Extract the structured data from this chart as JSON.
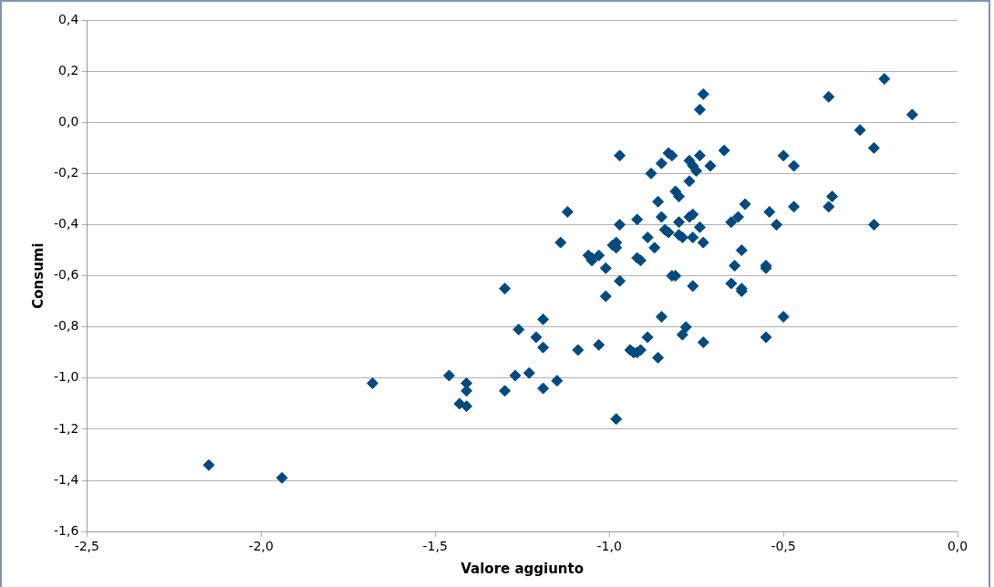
{
  "chart_data": {
    "type": "scatter",
    "xlabel": "Valore aggiunto",
    "ylabel": "Consumi",
    "xlim": [
      -2.5,
      0
    ],
    "xticks": [
      {
        "value": -2.5,
        "label": "-2,5"
      },
      {
        "value": -2,
        "label": "-2,0"
      },
      {
        "value": -1.5,
        "label": "-1,5"
      },
      {
        "value": -1,
        "label": "-1,0"
      },
      {
        "value": -0.5,
        "label": "-0,5"
      },
      {
        "value": 0,
        "label": "0,0"
      }
    ],
    "ylim": [
      -1.6,
      0.4
    ],
    "yticks": [
      {
        "value": -1.6,
        "label": "-1,6"
      },
      {
        "value": -1.4,
        "label": "-1,4"
      },
      {
        "value": -1.2,
        "label": "-1,2"
      },
      {
        "value": -1,
        "label": "-1,0"
      },
      {
        "value": -0.8,
        "label": "-0,8"
      },
      {
        "value": -0.6,
        "label": "-0,6"
      },
      {
        "value": -0.4,
        "label": "-0,4"
      },
      {
        "value": -0.2,
        "label": "-0,2"
      },
      {
        "value": 0,
        "label": "0,0"
      },
      {
        "value": 0.2,
        "label": "0,2"
      },
      {
        "value": 0.4,
        "label": "0,4"
      }
    ],
    "grid": "y",
    "marker": "diamond",
    "series": [
      {
        "color": "#004a80",
        "x": [
          -2.15,
          -1.94,
          -1.68,
          -1.46,
          -1.43,
          -1.41,
          -1.41,
          -1.41,
          -1.3,
          -1.3,
          -1.27,
          -1.26,
          -1.23,
          -1.21,
          -1.19,
          -1.19,
          -1.19,
          -1.15,
          -1.14,
          -1.12,
          -1.09,
          -1.06,
          -1.05,
          -1.05,
          -1.03,
          -1.03,
          -1.01,
          -1.01,
          -0.99,
          -0.98,
          -0.98,
          -0.98,
          -0.97,
          -0.97,
          -0.97,
          -0.94,
          -0.93,
          -0.92,
          -0.91,
          -0.92,
          -0.92,
          -0.91,
          -0.89,
          -0.89,
          -0.88,
          -0.87,
          -0.86,
          -0.86,
          -0.85,
          -0.85,
          -0.85,
          -0.84,
          -0.83,
          -0.83,
          -0.82,
          -0.82,
          -0.81,
          -0.81,
          -0.8,
          -0.8,
          -0.8,
          -0.79,
          -0.79,
          -0.78,
          -0.77,
          -0.77,
          -0.77,
          -0.76,
          -0.76,
          -0.76,
          -0.76,
          -0.75,
          -0.74,
          -0.74,
          -0.74,
          -0.73,
          -0.73,
          -0.73,
          -0.71,
          -0.67,
          -0.65,
          -0.65,
          -0.64,
          -0.63,
          -0.62,
          -0.62,
          -0.62,
          -0.61,
          -0.55,
          -0.55,
          -0.55,
          -0.54,
          -0.52,
          -0.5,
          -0.5,
          -0.47,
          -0.47,
          -0.37,
          -0.37,
          -0.36,
          -0.28,
          -0.24,
          -0.24,
          -0.21,
          -0.13
        ],
        "values": [
          -1.34,
          -1.39,
          -1.02,
          -0.99,
          -1.1,
          -1.02,
          -1.05,
          -1.11,
          -0.65,
          -1.05,
          -0.99,
          -0.81,
          -0.98,
          -0.84,
          -0.88,
          -0.77,
          -1.04,
          -1.01,
          -0.47,
          -0.35,
          -0.89,
          -0.52,
          -0.53,
          -0.54,
          -0.87,
          -0.52,
          -0.57,
          -0.68,
          -0.48,
          -0.49,
          -1.16,
          -0.47,
          -0.4,
          -0.62,
          -0.13,
          -0.89,
          -0.9,
          -0.9,
          -0.89,
          -0.53,
          -0.38,
          -0.54,
          -0.45,
          -0.84,
          -0.2,
          -0.49,
          -0.31,
          -0.92,
          -0.76,
          -0.16,
          -0.37,
          -0.42,
          -0.12,
          -0.43,
          -0.6,
          -0.13,
          -0.6,
          -0.27,
          -0.44,
          -0.29,
          -0.39,
          -0.83,
          -0.45,
          -0.8,
          -0.37,
          -0.23,
          -0.15,
          -0.17,
          -0.36,
          -0.64,
          -0.45,
          -0.19,
          -0.41,
          0.05,
          -0.13,
          -0.47,
          -0.86,
          0.11,
          -0.17,
          -0.11,
          -0.39,
          -0.63,
          -0.56,
          -0.37,
          -0.65,
          -0.66,
          -0.5,
          -0.32,
          -0.84,
          -0.56,
          -0.57,
          -0.35,
          -0.4,
          -0.13,
          -0.76,
          -0.17,
          -0.33,
          0.1,
          -0.33,
          -0.29,
          -0.03,
          -0.1,
          -0.4,
          0.17,
          0.03
        ]
      }
    ]
  }
}
